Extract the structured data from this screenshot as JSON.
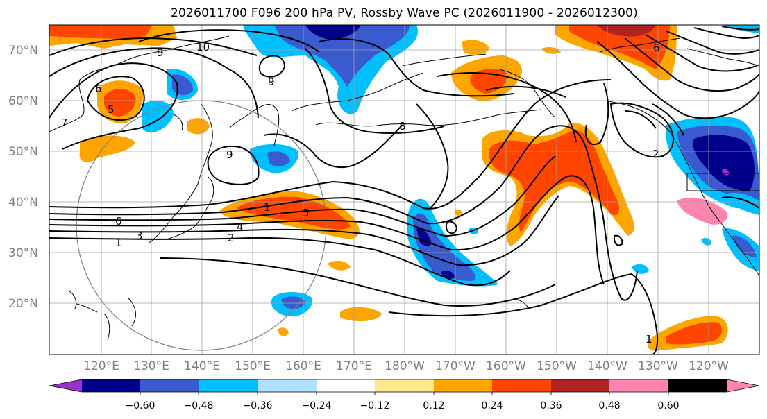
{
  "title": "2026011700 F096 200 hPa PV, Rossby Wave PC (2026011900 - 2026012300)",
  "map": {
    "lat_ticks": [
      "20°N",
      "30°N",
      "40°N",
      "50°N",
      "60°N",
      "70°N"
    ],
    "lon_ticks": [
      "120°E",
      "130°E",
      "140°E",
      "150°E",
      "160°E",
      "170°E",
      "180°W",
      "170°W",
      "160°W",
      "150°W",
      "140°W",
      "130°W",
      "120°W"
    ],
    "pv_contour_labels": [
      "10",
      "9",
      "9",
      "9",
      "8",
      "7",
      "6",
      "6",
      "6",
      "5",
      "5",
      "4",
      "3",
      "2",
      "2",
      "1",
      "1",
      "1"
    ]
  },
  "colorbar": {
    "colors": [
      "#9932cc",
      "#00008b",
      "#3a5bd0",
      "#00bfff",
      "#b0e0ff",
      "#ffffff",
      "#ffe98a",
      "#ffa500",
      "#ff4500",
      "#b22222",
      "#ff85b0"
    ],
    "tick_labels": [
      "−0.60",
      "−0.48",
      "−0.36",
      "−0.24",
      "−0.12",
      "0.12",
      "0.24",
      "0.36",
      "0.48",
      "0.60"
    ]
  }
}
